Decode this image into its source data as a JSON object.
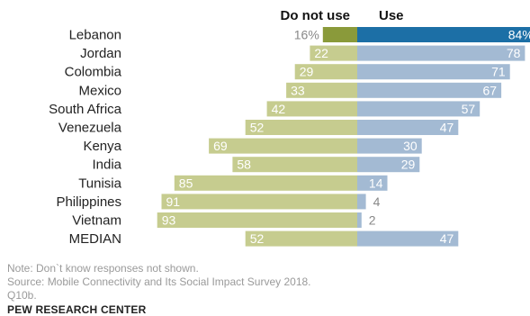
{
  "chart_data": {
    "type": "bar",
    "orientation": "diverging-horizontal",
    "categories": [
      "Lebanon",
      "Jordan",
      "Colombia",
      "Mexico",
      "South Africa",
      "Venezuela",
      "Kenya",
      "India",
      "Tunisia",
      "Philippines",
      "Vietnam",
      "MEDIAN"
    ],
    "series": [
      {
        "name": "Do not use",
        "values": [
          16,
          22,
          29,
          33,
          42,
          52,
          69,
          58,
          85,
          91,
          93,
          52
        ],
        "labels": [
          "16%",
          "22",
          "29",
          "33",
          "42",
          "52",
          "69",
          "58",
          "85",
          "91",
          "93",
          "52"
        ]
      },
      {
        "name": "Use",
        "values": [
          84,
          78,
          71,
          67,
          57,
          47,
          30,
          29,
          14,
          4,
          2,
          47
        ],
        "labels": [
          "84%",
          "78",
          "71",
          "67",
          "57",
          "47",
          "30",
          "29",
          "14",
          "4",
          "2",
          "47"
        ]
      }
    ],
    "xlim": [
      0,
      100
    ],
    "legend": "top",
    "grid": false
  },
  "colors": {
    "do_not_use": "#c6cc8f",
    "do_not_use_highlight": "#8a9a3a",
    "use": "#a3bad3",
    "use_highlight": "#1c6fa6",
    "label_inside_light": "#ffffff",
    "label_outside": "#888888"
  },
  "notes": {
    "note": "Note: Don`t know responses not shown.",
    "source": "Source: Mobile Connectivity and Its Social Impact Survey 2018.\nQ10b."
  },
  "footer": {
    "org": "PEW RESEARCH CENTER"
  }
}
